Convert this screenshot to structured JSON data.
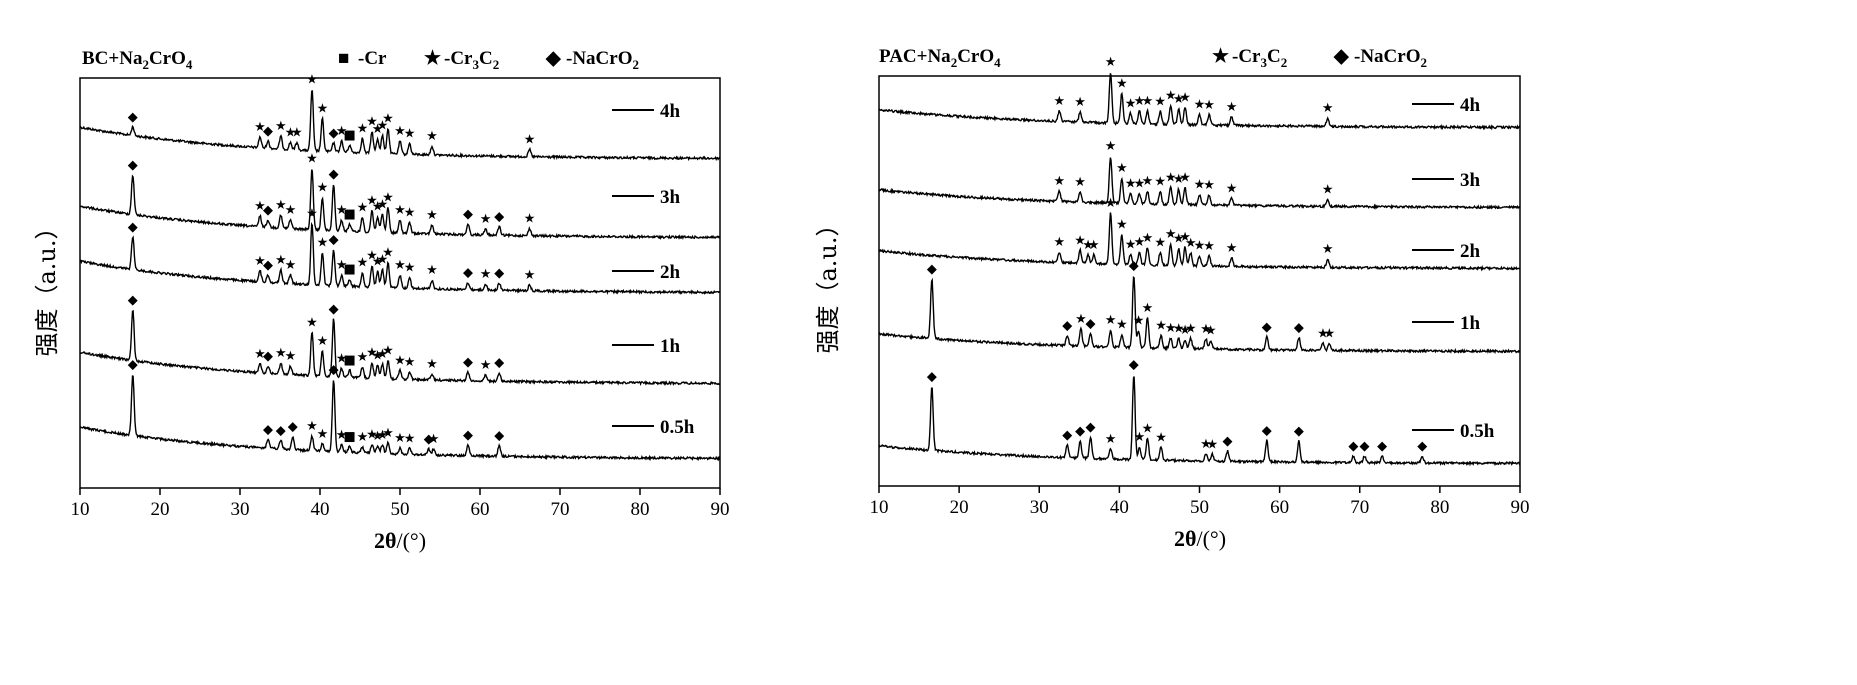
{
  "chart_data": [
    {
      "type": "line",
      "title_main": "BC+Na",
      "title_sub1": "2",
      "title_mid": "CrO",
      "title_sub2": "4",
      "legend": [
        {
          "symbol": "■",
          "label_main": "-Cr",
          "label_tail": ""
        },
        {
          "symbol": "★",
          "label_main": "-Cr",
          "label_sub1": "3",
          "label_mid": "C",
          "label_sub2": "2",
          "label_tail": ""
        },
        {
          "symbol": "◆",
          "label_main": "-NaCrO",
          "label_sub1": "2",
          "label_tail": ""
        }
      ],
      "xlabel_main": "2θ",
      "xlabel_unit": "/(°)",
      "ylabel": "强度（a.u.）",
      "xlim": [
        10,
        90
      ],
      "xticks": [
        "10",
        "20",
        "30",
        "40",
        "50",
        "60",
        "70",
        "80",
        "90"
      ],
      "series": [
        {
          "name": "4h",
          "offset": 4.0,
          "peaks": [
            [
              16.6,
              0.12,
              "◆"
            ],
            [
              32.5,
              0.15,
              "★"
            ],
            [
              33.5,
              0.1,
              "◆"
            ],
            [
              35.1,
              0.18,
              "★"
            ],
            [
              36.3,
              0.1,
              "★"
            ],
            [
              37.1,
              0.1,
              "★"
            ],
            [
              39.0,
              0.85,
              "★"
            ],
            [
              40.3,
              0.45,
              "★"
            ],
            [
              41.7,
              0.12,
              "◆"
            ],
            [
              42.7,
              0.15,
              "★"
            ],
            [
              43.7,
              0.1,
              "■"
            ],
            [
              45.3,
              0.2,
              "★"
            ],
            [
              46.5,
              0.3,
              "★"
            ],
            [
              47.2,
              0.2,
              "★"
            ],
            [
              47.8,
              0.25,
              "★"
            ],
            [
              48.5,
              0.35,
              "★"
            ],
            [
              50.0,
              0.18,
              "★"
            ],
            [
              51.2,
              0.15,
              "★"
            ],
            [
              54.0,
              0.12,
              "★"
            ],
            [
              66.2,
              0.1,
              "★"
            ]
          ]
        },
        {
          "name": "3h",
          "offset": 3.0,
          "peaks": [
            [
              16.6,
              0.55,
              "◆"
            ],
            [
              32.5,
              0.15,
              "★"
            ],
            [
              33.5,
              0.1,
              "◆"
            ],
            [
              35.1,
              0.18,
              "★"
            ],
            [
              36.3,
              0.12,
              "★"
            ],
            [
              39.0,
              0.85,
              "★"
            ],
            [
              40.3,
              0.45,
              "★"
            ],
            [
              41.7,
              0.65,
              "◆"
            ],
            [
              42.7,
              0.15,
              "★"
            ],
            [
              43.7,
              0.1,
              "■"
            ],
            [
              45.3,
              0.2,
              "★"
            ],
            [
              46.5,
              0.3,
              "★"
            ],
            [
              47.2,
              0.22,
              "★"
            ],
            [
              47.8,
              0.25,
              "★"
            ],
            [
              48.5,
              0.35,
              "★"
            ],
            [
              50.0,
              0.18,
              "★"
            ],
            [
              51.2,
              0.15,
              "★"
            ],
            [
              54.0,
              0.12,
              "★"
            ],
            [
              58.5,
              0.15,
              "◆"
            ],
            [
              60.7,
              0.08,
              "★"
            ],
            [
              62.4,
              0.12,
              "◆"
            ],
            [
              66.2,
              0.1,
              "★"
            ]
          ]
        },
        {
          "name": "2h",
          "offset": 2.0,
          "peaks": [
            [
              16.6,
              0.45,
              "◆"
            ],
            [
              32.5,
              0.15,
              "★"
            ],
            [
              33.5,
              0.1,
              "◆"
            ],
            [
              35.1,
              0.18,
              "★"
            ],
            [
              36.3,
              0.12,
              "★"
            ],
            [
              39.0,
              0.85,
              "★"
            ],
            [
              40.3,
              0.45,
              "★"
            ],
            [
              41.7,
              0.5,
              "◆"
            ],
            [
              42.7,
              0.15,
              "★"
            ],
            [
              43.7,
              0.1,
              "■"
            ],
            [
              45.3,
              0.2,
              "★"
            ],
            [
              46.5,
              0.3,
              "★"
            ],
            [
              47.2,
              0.22,
              "★"
            ],
            [
              47.8,
              0.25,
              "★"
            ],
            [
              48.5,
              0.35,
              "★"
            ],
            [
              50.0,
              0.18,
              "★"
            ],
            [
              51.2,
              0.15,
              "★"
            ],
            [
              54.0,
              0.12,
              "★"
            ],
            [
              58.5,
              0.1,
              "◆"
            ],
            [
              60.7,
              0.08,
              "★"
            ],
            [
              62.4,
              0.1,
              "◆"
            ],
            [
              66.2,
              0.08,
              "★"
            ]
          ]
        },
        {
          "name": "1h",
          "offset": 1.0,
          "peaks": [
            [
              16.6,
              0.7,
              "◆"
            ],
            [
              32.5,
              0.12,
              "★"
            ],
            [
              33.5,
              0.1,
              "◆"
            ],
            [
              35.1,
              0.15,
              "★"
            ],
            [
              36.3,
              0.12,
              "★"
            ],
            [
              39.0,
              0.6,
              "★"
            ],
            [
              40.3,
              0.35,
              "★"
            ],
            [
              41.7,
              0.8,
              "◆"
            ],
            [
              42.7,
              0.12,
              "★"
            ],
            [
              43.7,
              0.1,
              "■"
            ],
            [
              45.3,
              0.15,
              "★"
            ],
            [
              46.5,
              0.22,
              "★"
            ],
            [
              47.2,
              0.18,
              "★"
            ],
            [
              47.8,
              0.2,
              "★"
            ],
            [
              48.5,
              0.25,
              "★"
            ],
            [
              50.0,
              0.12,
              "★"
            ],
            [
              51.2,
              0.1,
              "★"
            ],
            [
              54.0,
              0.08,
              "★"
            ],
            [
              58.5,
              0.12,
              "◆"
            ],
            [
              60.7,
              0.08,
              "★"
            ],
            [
              62.4,
              0.12,
              "◆"
            ]
          ]
        },
        {
          "name": "0.5h",
          "offset": 0.0,
          "peaks": [
            [
              16.6,
              0.85,
              "◆"
            ],
            [
              33.5,
              0.12,
              "◆"
            ],
            [
              35.1,
              0.12,
              "◆"
            ],
            [
              36.6,
              0.18,
              "◆"
            ],
            [
              39.0,
              0.2,
              "★"
            ],
            [
              40.3,
              0.1,
              "★"
            ],
            [
              41.7,
              1.0,
              "◆"
            ],
            [
              42.7,
              0.1,
              "★"
            ],
            [
              43.7,
              0.08,
              "■"
            ],
            [
              45.3,
              0.08,
              "★"
            ],
            [
              46.5,
              0.12,
              "★"
            ],
            [
              47.2,
              0.1,
              "★"
            ],
            [
              47.8,
              0.12,
              "★"
            ],
            [
              48.5,
              0.15,
              "★"
            ],
            [
              50.0,
              0.08,
              "★"
            ],
            [
              51.2,
              0.08,
              "★"
            ],
            [
              53.6,
              0.08,
              "◆"
            ],
            [
              54.2,
              0.08,
              "★"
            ],
            [
              58.5,
              0.15,
              "◆"
            ],
            [
              62.4,
              0.15,
              "◆"
            ]
          ]
        }
      ]
    },
    {
      "type": "line",
      "title_main": "PAC+Na",
      "title_sub1": "2",
      "title_mid": "CrO",
      "title_sub2": "4",
      "legend": [
        {
          "symbol": "★",
          "label_main": "-Cr",
          "label_sub1": "3",
          "label_mid": "C",
          "label_sub2": "2",
          "label_tail": ""
        },
        {
          "symbol": "◆",
          "label_main": "-NaCrO",
          "label_sub1": "2",
          "label_tail": ""
        }
      ],
      "xlabel_main": "2θ",
      "xlabel_unit": "/(°)",
      "ylabel": "强度（a.u.）",
      "xlim": [
        10,
        90
      ],
      "xticks": [
        "10",
        "20",
        "30",
        "40",
        "50",
        "60",
        "70",
        "80",
        "90"
      ],
      "series": [
        {
          "name": "4h",
          "offset": 4.0,
          "peaks": [
            [
              32.5,
              0.12,
              "★"
            ],
            [
              35.1,
              0.12,
              "★"
            ],
            [
              38.9,
              0.6,
              "★"
            ],
            [
              40.3,
              0.35,
              "★"
            ],
            [
              41.4,
              0.12,
              "★"
            ],
            [
              42.5,
              0.15,
              "★"
            ],
            [
              43.5,
              0.15,
              "★"
            ],
            [
              45.1,
              0.15,
              "★"
            ],
            [
              46.4,
              0.22,
              "★"
            ],
            [
              47.4,
              0.18,
              "★"
            ],
            [
              48.2,
              0.2,
              "★"
            ],
            [
              50.0,
              0.12,
              "★"
            ],
            [
              51.2,
              0.12,
              "★"
            ],
            [
              54.0,
              0.1,
              "★"
            ],
            [
              66.0,
              0.1,
              "★"
            ]
          ]
        },
        {
          "name": "3h",
          "offset": 3.0,
          "peaks": [
            [
              32.5,
              0.12,
              "★"
            ],
            [
              35.1,
              0.12,
              "★"
            ],
            [
              38.9,
              0.55,
              "★"
            ],
            [
              40.3,
              0.3,
              "★"
            ],
            [
              41.4,
              0.12,
              "★"
            ],
            [
              42.5,
              0.12,
              "★"
            ],
            [
              43.5,
              0.15,
              "★"
            ],
            [
              45.1,
              0.15,
              "★"
            ],
            [
              46.4,
              0.2,
              "★"
            ],
            [
              47.4,
              0.18,
              "★"
            ],
            [
              48.2,
              0.2,
              "★"
            ],
            [
              50.0,
              0.12,
              "★"
            ],
            [
              51.2,
              0.12,
              "★"
            ],
            [
              54.0,
              0.08,
              "★"
            ],
            [
              66.0,
              0.08,
              "★"
            ]
          ]
        },
        {
          "name": "2h",
          "offset": 2.0,
          "peaks": [
            [
              32.5,
              0.12,
              "★"
            ],
            [
              35.1,
              0.15,
              "★"
            ],
            [
              36.1,
              0.1,
              "★"
            ],
            [
              36.8,
              0.1,
              "★"
            ],
            [
              38.9,
              0.6,
              "★"
            ],
            [
              40.3,
              0.35,
              "★"
            ],
            [
              41.4,
              0.12,
              "★"
            ],
            [
              42.5,
              0.15,
              "★"
            ],
            [
              43.5,
              0.2,
              "★"
            ],
            [
              45.1,
              0.15,
              "★"
            ],
            [
              46.4,
              0.25,
              "★"
            ],
            [
              47.4,
              0.2,
              "★"
            ],
            [
              48.2,
              0.22,
              "★"
            ],
            [
              48.9,
              0.15,
              "★"
            ],
            [
              50.0,
              0.12,
              "★"
            ],
            [
              51.2,
              0.12,
              "★"
            ],
            [
              54.0,
              0.1,
              "★"
            ],
            [
              66.0,
              0.1,
              "★"
            ]
          ]
        },
        {
          "name": "1h",
          "offset": 1.0,
          "peaks": [
            [
              16.6,
              0.7,
              "◆"
            ],
            [
              33.5,
              0.12,
              "◆"
            ],
            [
              35.2,
              0.2,
              "★"
            ],
            [
              36.4,
              0.15,
              "◆"
            ],
            [
              38.9,
              0.2,
              "★"
            ],
            [
              40.3,
              0.15,
              "★"
            ],
            [
              41.8,
              0.85,
              "◆"
            ],
            [
              42.4,
              0.2,
              "★"
            ],
            [
              43.5,
              0.35,
              "★"
            ],
            [
              45.2,
              0.15,
              "★"
            ],
            [
              46.4,
              0.12,
              "★"
            ],
            [
              47.4,
              0.12,
              "★"
            ],
            [
              48.2,
              0.1,
              "★"
            ],
            [
              48.9,
              0.12,
              "★"
            ],
            [
              50.8,
              0.12,
              "★"
            ],
            [
              51.4,
              0.1,
              "★"
            ],
            [
              58.4,
              0.15,
              "◆"
            ],
            [
              62.4,
              0.15,
              "◆"
            ],
            [
              65.4,
              0.08,
              "★"
            ],
            [
              66.2,
              0.08,
              "★"
            ]
          ]
        },
        {
          "name": "0.5h",
          "offset": 0.0,
          "peaks": [
            [
              16.6,
              0.75,
              "◆"
            ],
            [
              33.5,
              0.15,
              "◆"
            ],
            [
              35.1,
              0.2,
              "◆"
            ],
            [
              36.4,
              0.25,
              "◆"
            ],
            [
              38.9,
              0.12,
              "★"
            ],
            [
              41.8,
              1.0,
              "◆"
            ],
            [
              42.5,
              0.15,
              "★"
            ],
            [
              43.5,
              0.25,
              "★"
            ],
            [
              45.2,
              0.15,
              "★"
            ],
            [
              50.8,
              0.08,
              "★"
            ],
            [
              51.6,
              0.08,
              "★"
            ],
            [
              53.5,
              0.12,
              "◆"
            ],
            [
              58.4,
              0.25,
              "◆"
            ],
            [
              62.4,
              0.25,
              "◆"
            ],
            [
              69.2,
              0.08,
              "◆"
            ],
            [
              70.6,
              0.08,
              "◆"
            ],
            [
              72.8,
              0.08,
              "◆"
            ],
            [
              77.8,
              0.08,
              "◆"
            ]
          ]
        }
      ]
    }
  ]
}
